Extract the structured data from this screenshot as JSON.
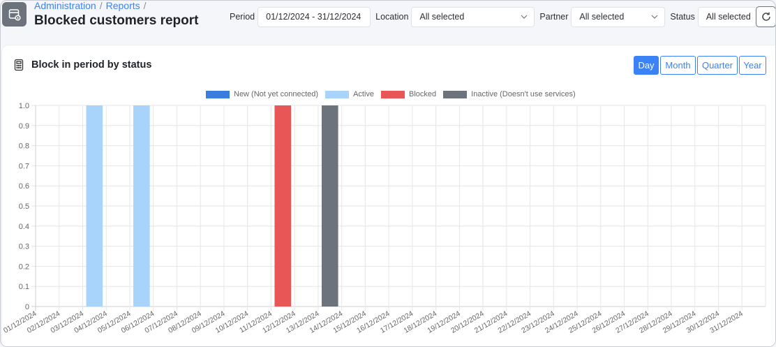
{
  "header": {
    "breadcrumb": [
      "Administration",
      "Reports"
    ],
    "title": "Blocked customers report",
    "page_icon": "report-calendar-icon"
  },
  "filters": {
    "period": {
      "label": "Period",
      "value": "01/12/2024 - 31/12/2024"
    },
    "location": {
      "label": "Location",
      "value": "All selected"
    },
    "partner": {
      "label": "Partner",
      "value": "All selected"
    },
    "status": {
      "label": "Status",
      "value": "All selected"
    },
    "refresh_icon": "refresh-icon"
  },
  "card": {
    "title": "Block in period by status",
    "icon": "calculator-icon",
    "period_buttons": [
      {
        "label": "Day",
        "active": true
      },
      {
        "label": "Month",
        "active": false
      },
      {
        "label": "Quarter",
        "active": false
      },
      {
        "label": "Year",
        "active": false
      }
    ]
  },
  "legend": [
    {
      "label": "New (Not yet connected)",
      "color": "#3b7ddd"
    },
    {
      "label": "Active",
      "color": "#a8d4fc"
    },
    {
      "label": "Blocked",
      "color": "#e95656"
    },
    {
      "label": "Inactive (Doesn't use services)",
      "color": "#6c737d"
    }
  ],
  "chart_data": {
    "type": "bar",
    "title": "Block in period by status",
    "xlabel": "",
    "ylabel": "",
    "ylim": [
      0,
      1.0
    ],
    "yticks": [
      0,
      0.1,
      0.2,
      0.3,
      0.4,
      0.5,
      0.6,
      0.7,
      0.8,
      0.9,
      1.0
    ],
    "grid": true,
    "legend_position": "top",
    "categories": [
      "01/12/2024",
      "02/12/2024",
      "03/12/2024",
      "04/12/2024",
      "05/12/2024",
      "06/12/2024",
      "07/12/2024",
      "08/12/2024",
      "09/12/2024",
      "10/12/2024",
      "11/12/2024",
      "12/12/2024",
      "13/12/2024",
      "14/12/2024",
      "15/12/2024",
      "16/12/2024",
      "17/12/2024",
      "18/12/2024",
      "19/12/2024",
      "20/12/2024",
      "21/12/2024",
      "22/12/2024",
      "23/12/2024",
      "24/12/2024",
      "25/12/2024",
      "26/12/2024",
      "27/12/2024",
      "28/12/2024",
      "29/12/2024",
      "30/12/2024",
      "31/12/2024"
    ],
    "series": [
      {
        "name": "New (Not yet connected)",
        "color": "#3b7ddd",
        "values": [
          0,
          0,
          0,
          0,
          0,
          0,
          0,
          0,
          0,
          0,
          0,
          0,
          0,
          0,
          0,
          0,
          0,
          0,
          0,
          0,
          0,
          0,
          0,
          0,
          0,
          0,
          0,
          0,
          0,
          0,
          0
        ]
      },
      {
        "name": "Active",
        "color": "#a8d4fc",
        "values": [
          0,
          0,
          1,
          0,
          1,
          0,
          0,
          0,
          0,
          0,
          0,
          0,
          0,
          0,
          0,
          0,
          0,
          0,
          0,
          0,
          0,
          0,
          0,
          0,
          0,
          0,
          0,
          0,
          0,
          0,
          0
        ]
      },
      {
        "name": "Blocked",
        "color": "#e95656",
        "values": [
          0,
          0,
          0,
          0,
          0,
          0,
          0,
          0,
          0,
          0,
          1,
          0,
          0,
          0,
          0,
          0,
          0,
          0,
          0,
          0,
          0,
          0,
          0,
          0,
          0,
          0,
          0,
          0,
          0,
          0,
          0
        ]
      },
      {
        "name": "Inactive (Doesn't use services)",
        "color": "#6c737d",
        "values": [
          0,
          0,
          0,
          0,
          0,
          0,
          0,
          0,
          0,
          0,
          0,
          0,
          1,
          0,
          0,
          0,
          0,
          0,
          0,
          0,
          0,
          0,
          0,
          0,
          0,
          0,
          0,
          0,
          0,
          0,
          0
        ]
      }
    ]
  }
}
